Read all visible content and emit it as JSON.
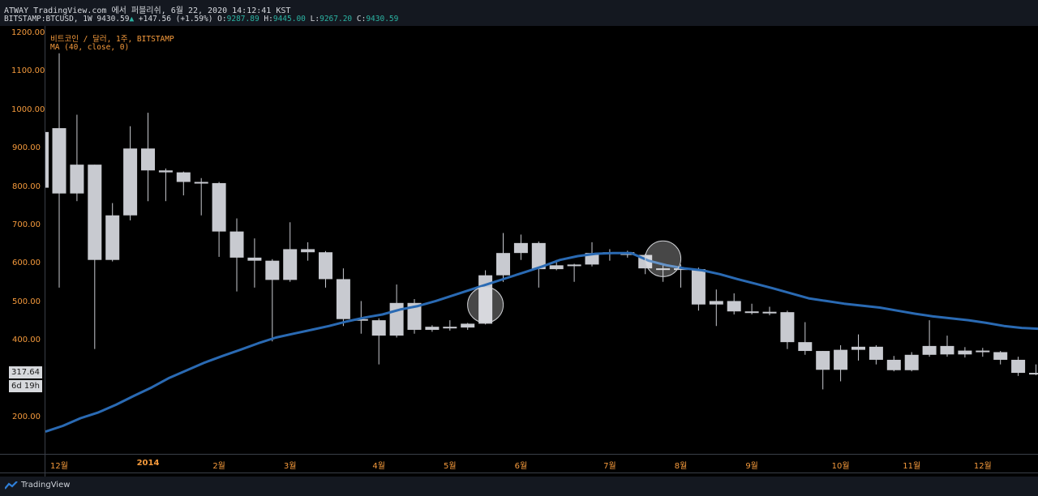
{
  "header": {
    "line1": "ATWAY TradingView.com 에서 퍼블리쉬, 6월 22, 2020 14:12:41 KST",
    "symbol": "BITSTAMP:BTCUSD, 1W",
    "last": "9430.59",
    "change": "+147.56 (+1.59%)",
    "o_label": "O:",
    "o_val": "9287.89",
    "h_label": "H:",
    "h_val": "9445.00",
    "l_label": "L:",
    "l_val": "9267.20",
    "c_label": "C:",
    "c_val": "9430.59"
  },
  "legend": {
    "series": "비트코인 / 달러, 1주, BITSTAMP",
    "indicator": "MA (40, close, 0)"
  },
  "badges": {
    "price": "317.64",
    "countdown": "6d 19h"
  },
  "footer": {
    "brand": "TradingView"
  },
  "colors": {
    "candle": "#c8cad0",
    "ma": "#2a6ab3",
    "axis_text": "#f59a3c",
    "background": "#000000"
  },
  "chart_data": {
    "type": "candlestick",
    "title": "비트코인 / 달러, 1주, BITSTAMP",
    "ylim": [
      150,
      1220
    ],
    "yticks": [
      "1200.00",
      "1100.00",
      "1000.00",
      "900.00",
      "800.00",
      "700.00",
      "600.00",
      "500.00",
      "400.00",
      "200.00"
    ],
    "ytick_values": [
      1200,
      1100,
      1000,
      900,
      800,
      700,
      600,
      500,
      400,
      200
    ],
    "xticks": [
      "12월",
      "2014",
      "2월",
      "3월",
      "4월",
      "5월",
      "6월",
      "7월",
      "8월",
      "9월",
      "10월",
      "11월",
      "12월"
    ],
    "xtick_weeks": [
      0.5,
      5.5,
      9.5,
      13.5,
      18.5,
      22.5,
      26.5,
      31.5,
      35.5,
      39.5,
      44.5,
      48.5,
      52.5
    ],
    "candles": [
      {
        "o": 955,
        "h": 1150,
        "l": 540,
        "c": 785
      },
      {
        "o": 785,
        "h": 990,
        "l": 765,
        "c": 860
      },
      {
        "o": 860,
        "h": 860,
        "l": 380,
        "c": 612
      },
      {
        "o": 612,
        "h": 760,
        "l": 608,
        "c": 728
      },
      {
        "o": 728,
        "h": 960,
        "l": 715,
        "c": 902
      },
      {
        "o": 902,
        "h": 995,
        "l": 765,
        "c": 845
      },
      {
        "o": 845,
        "h": 850,
        "l": 765,
        "c": 840
      },
      {
        "o": 840,
        "h": 842,
        "l": 780,
        "c": 815
      },
      {
        "o": 815,
        "h": 825,
        "l": 728,
        "c": 812
      },
      {
        "o": 812,
        "h": 815,
        "l": 620,
        "c": 686
      },
      {
        "o": 686,
        "h": 720,
        "l": 530,
        "c": 618
      },
      {
        "o": 618,
        "h": 668,
        "l": 540,
        "c": 610
      },
      {
        "o": 610,
        "h": 614,
        "l": 400,
        "c": 560
      },
      {
        "o": 560,
        "h": 710,
        "l": 555,
        "c": 640
      },
      {
        "o": 640,
        "h": 658,
        "l": 610,
        "c": 632
      },
      {
        "o": 632,
        "h": 635,
        "l": 540,
        "c": 562
      },
      {
        "o": 562,
        "h": 590,
        "l": 440,
        "c": 458
      },
      {
        "o": 458,
        "h": 505,
        "l": 420,
        "c": 455
      },
      {
        "o": 455,
        "h": 460,
        "l": 340,
        "c": 415
      },
      {
        "o": 415,
        "h": 548,
        "l": 410,
        "c": 500
      },
      {
        "o": 500,
        "h": 510,
        "l": 420,
        "c": 430
      },
      {
        "o": 430,
        "h": 442,
        "l": 425,
        "c": 438
      },
      {
        "o": 438,
        "h": 455,
        "l": 428,
        "c": 436
      },
      {
        "o": 436,
        "h": 448,
        "l": 430,
        "c": 446
      },
      {
        "o": 446,
        "h": 585,
        "l": 444,
        "c": 572
      },
      {
        "o": 572,
        "h": 682,
        "l": 555,
        "c": 630
      },
      {
        "o": 630,
        "h": 678,
        "l": 612,
        "c": 656
      },
      {
        "o": 656,
        "h": 660,
        "l": 540,
        "c": 588
      },
      {
        "o": 588,
        "h": 612,
        "l": 585,
        "c": 598
      },
      {
        "o": 598,
        "h": 602,
        "l": 555,
        "c": 600
      },
      {
        "o": 600,
        "h": 658,
        "l": 595,
        "c": 630
      },
      {
        "o": 630,
        "h": 640,
        "l": 610,
        "c": 632
      },
      {
        "o": 632,
        "h": 636,
        "l": 618,
        "c": 625
      },
      {
        "o": 625,
        "h": 628,
        "l": 575,
        "c": 590
      },
      {
        "o": 590,
        "h": 600,
        "l": 555,
        "c": 590
      },
      {
        "o": 590,
        "h": 600,
        "l": 540,
        "c": 588
      },
      {
        "o": 588,
        "h": 592,
        "l": 480,
        "c": 496
      },
      {
        "o": 496,
        "h": 535,
        "l": 440,
        "c": 505
      },
      {
        "o": 505,
        "h": 525,
        "l": 470,
        "c": 478
      },
      {
        "o": 478,
        "h": 498,
        "l": 470,
        "c": 477
      },
      {
        "o": 477,
        "h": 490,
        "l": 468,
        "c": 476
      },
      {
        "o": 476,
        "h": 480,
        "l": 380,
        "c": 398
      },
      {
        "o": 398,
        "h": 450,
        "l": 365,
        "c": 375
      },
      {
        "o": 375,
        "h": 375,
        "l": 275,
        "c": 326
      },
      {
        "o": 326,
        "h": 390,
        "l": 296,
        "c": 378
      },
      {
        "o": 378,
        "h": 418,
        "l": 350,
        "c": 386
      },
      {
        "o": 386,
        "h": 390,
        "l": 340,
        "c": 352
      },
      {
        "o": 352,
        "h": 362,
        "l": 322,
        "c": 325
      },
      {
        "o": 325,
        "h": 372,
        "l": 322,
        "c": 365
      },
      {
        "o": 365,
        "h": 455,
        "l": 360,
        "c": 388
      },
      {
        "o": 388,
        "h": 415,
        "l": 360,
        "c": 366
      },
      {
        "o": 366,
        "h": 385,
        "l": 358,
        "c": 376
      },
      {
        "o": 376,
        "h": 383,
        "l": 360,
        "c": 372
      },
      {
        "o": 372,
        "h": 375,
        "l": 340,
        "c": 352
      },
      {
        "o": 352,
        "h": 360,
        "l": 310,
        "c": 318
      },
      {
        "o": 318,
        "h": 340,
        "l": 312,
        "c": 318
      }
    ],
    "ma": [
      165,
      180,
      200,
      215,
      235,
      258,
      280,
      305,
      325,
      345,
      362,
      378,
      395,
      410,
      420,
      430,
      440,
      452,
      462,
      470,
      483,
      492,
      505,
      520,
      535,
      550,
      565,
      580,
      595,
      612,
      622,
      628,
      630,
      630,
      610,
      598,
      590,
      585,
      575,
      562,
      550,
      538,
      525,
      512,
      505,
      498,
      493,
      488,
      480,
      472,
      465,
      460,
      455,
      448,
      440,
      435
    ],
    "ma_x_start": 0,
    "highlights": [
      24.5,
      34.5
    ]
  }
}
